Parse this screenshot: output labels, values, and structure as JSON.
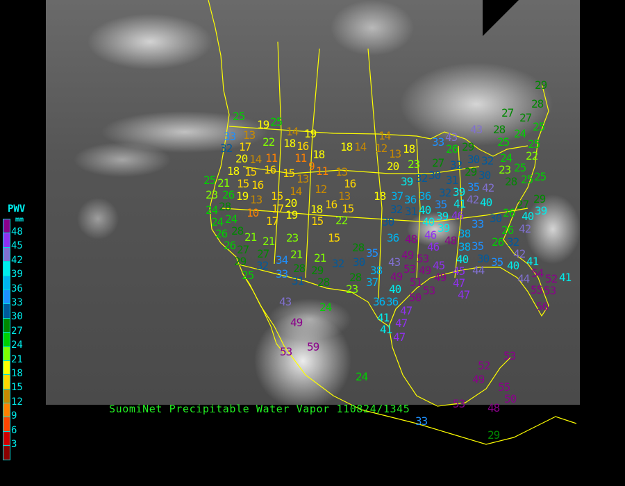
{
  "title": "SuomiNet Precipitable Water Vapor 110824/1345",
  "legend": {
    "title": "PWV",
    "unit": "mm",
    "labels": [
      "48",
      "45",
      "42",
      "39",
      "36",
      "33",
      "30",
      "27",
      "24",
      "21",
      "18",
      "15",
      "12",
      "9",
      "6",
      "3"
    ],
    "colors": [
      "#8b008b",
      "#9030f0",
      "#8070d0",
      "#00eeee",
      "#00b4f0",
      "#1e90ff",
      "#005a9c",
      "#008800",
      "#00d000",
      "#80ff00",
      "#ffff00",
      "#ffd700",
      "#c88a00",
      "#ff8000",
      "#ff4500",
      "#d00000",
      "#8b0000"
    ]
  },
  "boundary_color": "#ffff00",
  "stations": [
    "19",
    "25",
    "14",
    "19",
    "33",
    "13",
    "22",
    "32",
    "17",
    "18",
    "16",
    "18",
    "14",
    "20",
    "18",
    "14",
    "11",
    "11",
    "15",
    "16",
    "9",
    "18",
    "15",
    "13",
    "11",
    "13",
    "16",
    "25",
    "21",
    "15",
    "16",
    "14",
    "12",
    "13",
    "23",
    "26",
    "19",
    "13",
    "15",
    "20",
    "16",
    "15",
    "28",
    "24",
    "24",
    "10",
    "17",
    "17",
    "19",
    "18",
    "15",
    "22",
    "24",
    "26",
    "28",
    "18",
    "25",
    "14",
    "12",
    "13",
    "18",
    "20",
    "23",
    "43",
    "28",
    "24",
    "25",
    "25",
    "22",
    "33",
    "43",
    "26",
    "29",
    "30",
    "27",
    "32",
    "29",
    "30",
    "32",
    "24",
    "23",
    "25",
    "25",
    "28",
    "25",
    "42",
    "39",
    "32",
    "30",
    "31",
    "32",
    "39",
    "35",
    "37",
    "36",
    "36",
    "35",
    "41",
    "42",
    "40",
    "32",
    "31",
    "40",
    "39",
    "46",
    "30",
    "40",
    "39",
    "46",
    "38",
    "33",
    "30",
    "26",
    "27",
    "29",
    "39",
    "40",
    "26",
    "42",
    "36",
    "48",
    "21",
    "21",
    "23",
    "15",
    "26",
    "27",
    "27",
    "29",
    "34",
    "21",
    "21",
    "32",
    "32",
    "28",
    "35",
    "30",
    "33",
    "28",
    "29",
    "31",
    "25",
    "28",
    "28",
    "38",
    "37",
    "23",
    "43",
    "24",
    "36",
    "41",
    "49",
    "53",
    "59",
    "46",
    "48",
    "38",
    "35",
    "26",
    "32",
    "40",
    "30",
    "35",
    "42",
    "40",
    "41",
    "49",
    "53",
    "43",
    "53",
    "49",
    "45",
    "45",
    "44",
    "49",
    "51",
    "49",
    "47",
    "47",
    "53",
    "50",
    "40",
    "36",
    "47",
    "47",
    "41",
    "47",
    "44",
    "54",
    "52",
    "41",
    "55",
    "53",
    "56",
    "24",
    "53",
    "52",
    "49",
    "55",
    "50",
    "53",
    "48",
    "33",
    "29",
    "29",
    "28",
    "27",
    "27",
    "25"
  ]
}
